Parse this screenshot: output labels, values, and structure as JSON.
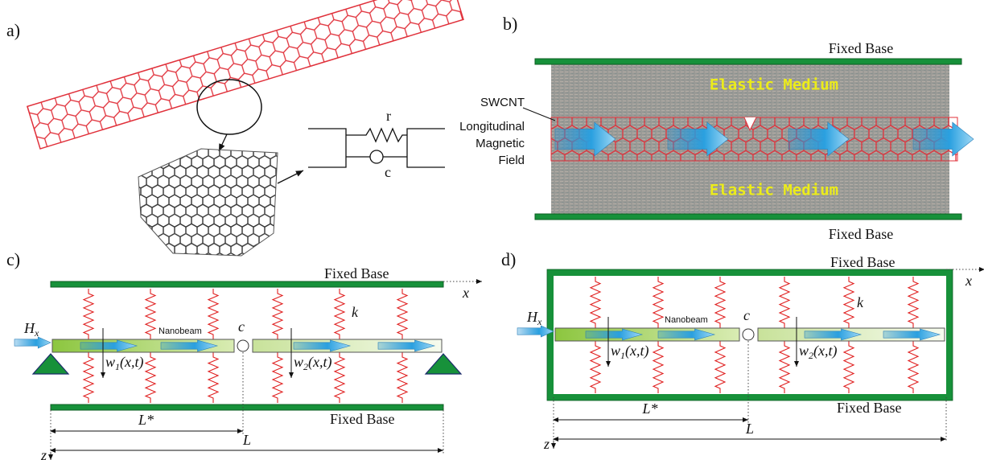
{
  "panels": [
    {
      "label": "a)",
      "resistor_label": "r",
      "spring_label": "c"
    },
    {
      "label": "b)",
      "top_base": "Fixed Base",
      "bottom_base": "Fixed Base",
      "medium_top": "Elastic Medium",
      "medium_bottom": "Elastic Medium",
      "tube_label": "SWCNT",
      "field_label": [
        "Longitudinal",
        "Magnetic",
        "Field"
      ]
    },
    {
      "label": "c)",
      "top_base": "Fixed Base",
      "bottom_base": "Fixed Base",
      "x_axis": "x",
      "z_axis": "z",
      "field": {
        "main": "H",
        "sub": "x"
      },
      "beam_label": "Nanobeam",
      "crack_label": "c",
      "spring_label": "k",
      "w1": {
        "main": "w",
        "sub": "1",
        "suffix": "(x,t)"
      },
      "w2": {
        "main": "w",
        "sub": "2",
        "suffix": "(x,t)"
      },
      "crack_position": "L*",
      "length": "L"
    },
    {
      "label": "d)",
      "top_base": "Fixed Base",
      "bottom_base": "Fixed Base",
      "x_axis": "x",
      "z_axis": "z",
      "field": {
        "main": "H",
        "sub": "x"
      },
      "beam_label": "Nanobeam",
      "crack_label": "c",
      "spring_label": "k",
      "w1": {
        "main": "w",
        "sub": "1",
        "suffix": "(x,t)"
      },
      "w2": {
        "main": "w",
        "sub": "2",
        "suffix": "(x,t)"
      },
      "crack_position": "L*",
      "length": "L"
    }
  ]
}
